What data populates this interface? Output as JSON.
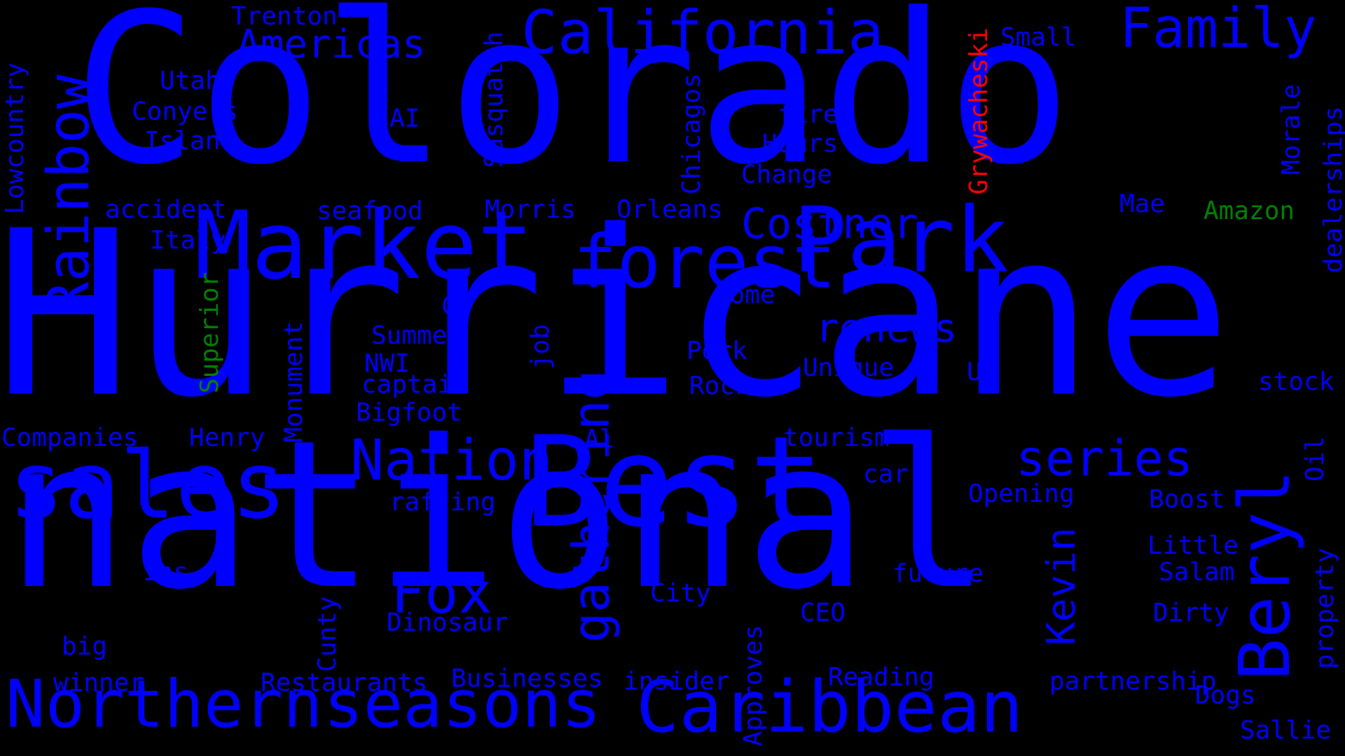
{
  "colors": {
    "background": "#000000",
    "primary": "#0000ff",
    "red": "#ff0000",
    "green": "#008000"
  },
  "words": {
    "hurricane": "Hurricane",
    "colorado": "Colorado",
    "national": "national",
    "best": "Best",
    "market": "Market",
    "forest": "forest",
    "park": "Park",
    "sales": "sales",
    "northern": "Northern",
    "seasons": "seasons",
    "caribbean": "Caribbean",
    "california": "California",
    "family": "Family",
    "rainbow": "Rainbow",
    "beryl": "Beryl",
    "nation": "Nation",
    "fox": "Fox",
    "gathering": "gathering",
    "series": "series",
    "costner": "Costner",
    "renews": "renews",
    "kevin": "Kevin",
    "americas": "Americas",
    "trenton": "Trenton",
    "utah": "Utah",
    "conyers": "Conyers",
    "island": "Island",
    "s": "S",
    "ai_upper": "AI",
    "sasquatch": "Sasquatch",
    "chicagos": "Chicagos",
    "fire": "fire",
    "hours": "Hours",
    "change": "Change",
    "grywacheski": "Grywacheski",
    "small": "Small",
    "lowcountry": "Lowcountry",
    "accident": "accident",
    "seafood": "seafood",
    "morris": "Morris",
    "orleans": "Orleans",
    "mae": "Mae",
    "amazon": "Amazon",
    "morale": "Morale",
    "dealerships": "dealerships",
    "italy": "Italy",
    "superior": "Superior",
    "home": "home",
    "ct": "CT",
    "summer": "Summer",
    "nwi": "NWI",
    "captain": "captain",
    "bigfoot": "Bigfoot",
    "job": "job",
    "perk": "Perk",
    "rock": "Rock",
    "unique": "Unique",
    "u": "U",
    "stock": "stock",
    "monument": "Monument",
    "companies": "Companies",
    "henry": "Henry",
    "al": "Al",
    "tourism": "tourism",
    "car": "car",
    "oil": "Oil",
    "opening": "Opening",
    "boost": "Boost",
    "rafting": "rafting",
    "little": "Little",
    "salam": "Salam",
    "ins": "Ins",
    "future": "future",
    "property": "property",
    "city": "City",
    "ceo": "CEO",
    "dirty": "Dirty",
    "dinosaur": "Dinosaur",
    "cunty": "Cunty",
    "approves": "Approves",
    "big": "big",
    "winner": "winner",
    "restaurants": "Restaurants",
    "businesses": "Businesses",
    "insider": "insider",
    "reading": "Reading",
    "partnership": "partnership",
    "dogs": "Dogs",
    "sallie": "Sallie"
  }
}
